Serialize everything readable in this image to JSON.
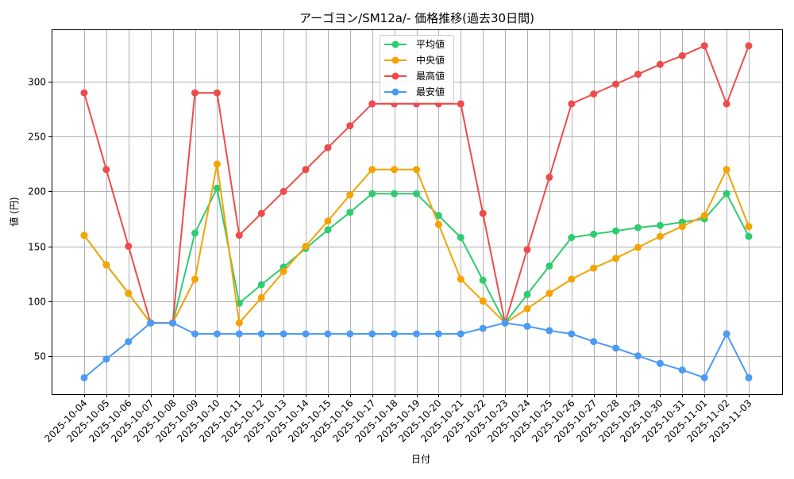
{
  "chart_data": {
    "type": "line",
    "title": "アーゴヨン/SM12a/- 価格推移(過去30日間)",
    "xlabel": "日付",
    "ylabel": "値 (円)",
    "ylim": [
      15,
      348
    ],
    "yticks": [
      50,
      100,
      150,
      200,
      250,
      300
    ],
    "grid": true,
    "legend_position": "upper center",
    "categories": [
      "2025-10-04",
      "2025-10-05",
      "2025-10-06",
      "2025-10-07",
      "2025-10-08",
      "2025-10-09",
      "2025-10-10",
      "2025-10-11",
      "2025-10-12",
      "2025-10-13",
      "2025-10-14",
      "2025-10-15",
      "2025-10-16",
      "2025-10-17",
      "2025-10-18",
      "2025-10-19",
      "2025-10-20",
      "2025-10-21",
      "2025-10-22",
      "2025-10-23",
      "2025-10-24",
      "2025-10-25",
      "2025-10-26",
      "2025-10-27",
      "2025-10-28",
      "2025-10-29",
      "2025-10-30",
      "2025-10-31",
      "2025-11-01",
      "2025-11-02",
      "2025-11-03"
    ],
    "series": [
      {
        "name": "平均値",
        "color": "#2ecc71",
        "values": [
          160,
          133,
          107,
          80,
          80,
          162,
          203,
          98,
          115,
          131,
          148,
          165,
          181,
          198,
          198,
          198,
          178,
          158,
          119,
          80,
          106,
          132,
          158,
          161,
          164,
          167,
          169,
          172,
          175,
          198,
          159
        ]
      },
      {
        "name": "中央値",
        "color": "#f5a300",
        "values": [
          160,
          133,
          107,
          80,
          80,
          120,
          225,
          80,
          103,
          127,
          150,
          173,
          197,
          220,
          220,
          220,
          170,
          120,
          100,
          80,
          93,
          107,
          120,
          130,
          139,
          149,
          159,
          168,
          178,
          220,
          168
        ]
      },
      {
        "name": "最高値",
        "color": "#ef4b4b",
        "values": [
          290,
          220,
          150,
          80,
          80,
          290,
          290,
          160,
          180,
          200,
          220,
          240,
          260,
          280,
          280,
          280,
          280,
          280,
          180,
          80,
          147,
          213,
          280,
          289,
          298,
          307,
          316,
          324,
          333,
          280,
          333
        ]
      },
      {
        "name": "最安値",
        "color": "#4b9bf5",
        "values": [
          30,
          47,
          63,
          80,
          80,
          70,
          70,
          70,
          70,
          70,
          70,
          70,
          70,
          70,
          70,
          70,
          70,
          70,
          75,
          80,
          77,
          73,
          70,
          63,
          57,
          50,
          43,
          37,
          30,
          70,
          30
        ]
      }
    ]
  }
}
